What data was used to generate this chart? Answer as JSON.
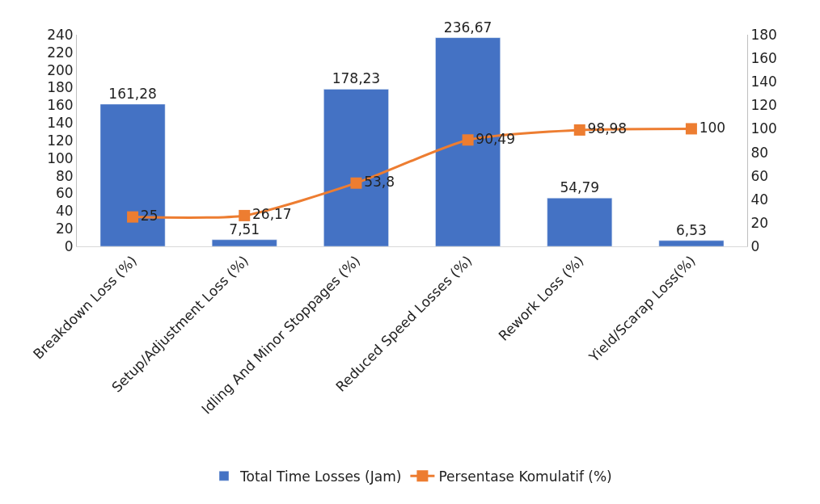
{
  "chart_data": {
    "type": "bar",
    "categories": [
      "Breakdown Loss (%)",
      "Setup/Adjustment Loss (%)",
      "Idling And Minor Stoppages (%)",
      "Reduced Speed Losses (%)",
      "Rework Loss (%)",
      "Yield/Scarap Loss(%)"
    ],
    "series": [
      {
        "name": "Total Time Losses (Jam)",
        "color": "#4472c4",
        "values": [
          161.28,
          7.51,
          178.23,
          236.67,
          54.79,
          6.53
        ],
        "value_labels": [
          "161,28",
          "7,51",
          "178,23",
          "236,67",
          "54,79",
          "6,53"
        ]
      },
      {
        "name": "Persentase Komulatif (%)",
        "type": "line",
        "axis": "y2",
        "color": "#ed7d31",
        "marker": "square",
        "values": [
          25,
          26.17,
          53.8,
          90.49,
          98.98,
          100
        ],
        "value_labels": [
          "25",
          "26,17",
          "53,8",
          "90,49",
          "98,98",
          "100"
        ]
      }
    ],
    "ylim": [
      0,
      240
    ],
    "yticks": [
      0,
      20,
      40,
      60,
      80,
      100,
      120,
      140,
      160,
      180,
      200,
      220,
      240
    ],
    "y2lim": [
      0,
      180
    ],
    "y2ticks": [
      0,
      20,
      40,
      60,
      80,
      100,
      120,
      140,
      160,
      180
    ],
    "legend": "bottom"
  }
}
